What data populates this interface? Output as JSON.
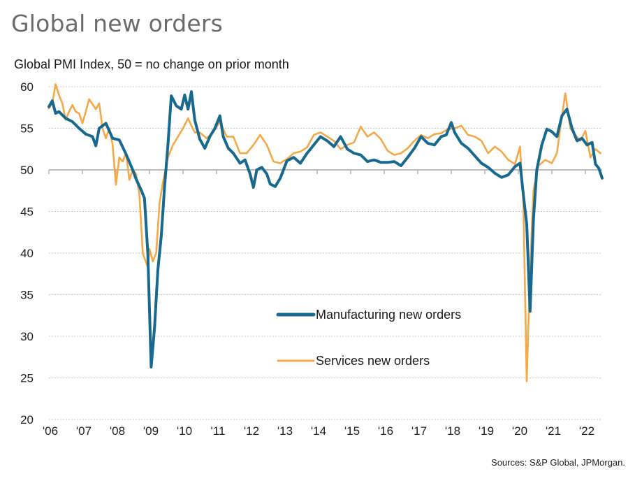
{
  "page": {
    "title": "Global new orders",
    "source": "Sources: S&P Global, JPMorgan."
  },
  "chart_data": {
    "type": "line",
    "title": "Global new orders",
    "subtitle": "Global PMI Index, 50 = no change on prior month",
    "xlabel": "",
    "ylabel": "Global PMI Index, 50 = no change on prior month",
    "ylim": [
      20,
      60
    ],
    "yticks": [
      20,
      25,
      30,
      35,
      40,
      45,
      50,
      55,
      60
    ],
    "xlim": [
      2006.0,
      2022.55
    ],
    "xticks": [
      2006,
      2007,
      2008,
      2009,
      2010,
      2011,
      2012,
      2013,
      2014,
      2015,
      2016,
      2017,
      2018,
      2019,
      2020,
      2021,
      2022
    ],
    "xtick_labels": [
      "'06",
      "'07",
      "'08",
      "'09",
      "'10",
      "'11",
      "'12",
      "'13",
      "'14",
      "'15",
      "'16",
      "'17",
      "'18",
      "'19",
      "'20",
      "'21",
      "'22"
    ],
    "reference_line": 50,
    "grid": "horizontal dotted",
    "legend": "center-bottom",
    "series": [
      {
        "name": "Manufacturing new orders",
        "color": "#17698f",
        "x": [
          2006.0,
          2006.1,
          2006.2,
          2006.3,
          2006.5,
          2006.7,
          2006.9,
          2007.1,
          2007.3,
          2007.4,
          2007.5,
          2007.7,
          2007.9,
          2008.1,
          2008.3,
          2008.5,
          2008.6,
          2008.75,
          2008.85,
          2008.95,
          2009.05,
          2009.15,
          2009.25,
          2009.35,
          2009.45,
          2009.55,
          2009.65,
          2009.8,
          2009.95,
          2010.05,
          2010.15,
          2010.25,
          2010.35,
          2010.5,
          2010.65,
          2010.8,
          2010.95,
          2011.1,
          2011.2,
          2011.35,
          2011.5,
          2011.7,
          2011.85,
          2012.0,
          2012.1,
          2012.2,
          2012.35,
          2012.5,
          2012.6,
          2012.75,
          2012.9,
          2013.1,
          2013.3,
          2013.5,
          2013.7,
          2013.9,
          2014.1,
          2014.3,
          2014.5,
          2014.7,
          2014.9,
          2015.1,
          2015.3,
          2015.5,
          2015.7,
          2015.9,
          2016.1,
          2016.3,
          2016.5,
          2016.7,
          2016.9,
          2017.1,
          2017.3,
          2017.5,
          2017.7,
          2017.85,
          2018.0,
          2018.1,
          2018.3,
          2018.5,
          2018.7,
          2018.9,
          2019.1,
          2019.3,
          2019.5,
          2019.7,
          2019.9,
          2020.05,
          2020.15,
          2020.25,
          2020.35,
          2020.45,
          2020.55,
          2020.7,
          2020.85,
          2021.0,
          2021.15,
          2021.3,
          2021.45,
          2021.6,
          2021.75,
          2021.9,
          2022.05,
          2022.2,
          2022.3,
          2022.4,
          2022.5
        ],
        "values": [
          57.6,
          58.3,
          56.8,
          57.0,
          56.2,
          55.8,
          55.0,
          54.3,
          54.0,
          52.9,
          55.0,
          55.6,
          53.8,
          53.6,
          51.9,
          50.0,
          48.9,
          47.6,
          46.6,
          40.0,
          26.3,
          31.0,
          38.0,
          42.0,
          48.0,
          53.0,
          58.9,
          57.7,
          57.3,
          59.0,
          57.3,
          59.4,
          56.0,
          53.7,
          52.6,
          54.0,
          55.0,
          56.5,
          54.0,
          52.6,
          52.0,
          50.8,
          51.2,
          49.5,
          47.9,
          50.0,
          50.3,
          49.5,
          48.3,
          48.0,
          49.0,
          51.1,
          51.5,
          50.8,
          52.0,
          53.0,
          54.0,
          53.5,
          52.8,
          54.0,
          52.5,
          52.0,
          51.8,
          51.0,
          51.2,
          50.9,
          50.9,
          51.0,
          50.5,
          51.5,
          52.6,
          54.0,
          53.2,
          53.0,
          54.0,
          54.2,
          55.7,
          54.5,
          53.2,
          52.6,
          51.7,
          50.8,
          50.3,
          49.6,
          49.1,
          49.4,
          50.4,
          50.8,
          47.0,
          43.5,
          33.0,
          44.0,
          50.0,
          53.0,
          54.9,
          54.6,
          54.0,
          56.5,
          57.3,
          55.0,
          53.5,
          53.8,
          53.0,
          53.3,
          50.7,
          50.2,
          49.0
        ]
      },
      {
        "name": "Services new orders",
        "color": "#f5a847",
        "x": [
          2006.0,
          2006.1,
          2006.2,
          2006.3,
          2006.4,
          2006.5,
          2006.6,
          2006.7,
          2006.8,
          2006.9,
          2007.0,
          2007.1,
          2007.2,
          2007.4,
          2007.5,
          2007.6,
          2007.7,
          2007.8,
          2007.9,
          2008.0,
          2008.1,
          2008.2,
          2008.3,
          2008.4,
          2008.5,
          2008.6,
          2008.7,
          2008.8,
          2008.95,
          2009.0,
          2009.1,
          2009.2,
          2009.3,
          2009.4,
          2009.55,
          2009.7,
          2009.85,
          2010.0,
          2010.15,
          2010.25,
          2010.35,
          2010.5,
          2010.7,
          2010.9,
          2011.1,
          2011.3,
          2011.5,
          2011.7,
          2011.9,
          2012.1,
          2012.3,
          2012.5,
          2012.7,
          2012.9,
          2013.1,
          2013.3,
          2013.5,
          2013.7,
          2013.9,
          2014.1,
          2014.3,
          2014.5,
          2014.7,
          2014.9,
          2015.1,
          2015.3,
          2015.5,
          2015.7,
          2015.9,
          2016.1,
          2016.3,
          2016.5,
          2016.7,
          2016.9,
          2017.1,
          2017.3,
          2017.5,
          2017.7,
          2017.9,
          2018.1,
          2018.3,
          2018.5,
          2018.7,
          2018.9,
          2019.1,
          2019.3,
          2019.5,
          2019.7,
          2019.9,
          2020.05,
          2020.15,
          2020.25,
          2020.35,
          2020.45,
          2020.6,
          2020.8,
          2021.0,
          2021.15,
          2021.25,
          2021.4,
          2021.55,
          2021.7,
          2021.85,
          2022.0,
          2022.15,
          2022.3,
          2022.45
        ],
        "values": [
          57.4,
          58.0,
          60.3,
          59.0,
          58.0,
          56.0,
          57.0,
          57.8,
          57.0,
          56.8,
          55.6,
          57.0,
          58.5,
          57.3,
          58.0,
          55.0,
          53.8,
          55.0,
          53.0,
          48.2,
          51.5,
          51.0,
          52.0,
          48.8,
          50.0,
          49.5,
          47.0,
          40.0,
          38.3,
          40.5,
          39.0,
          40.0,
          46.0,
          48.5,
          51.5,
          53.0,
          54.0,
          55.0,
          56.2,
          55.3,
          54.5,
          54.5,
          53.8,
          54.5,
          55.8,
          54.0,
          54.0,
          52.0,
          52.0,
          53.0,
          54.2,
          53.0,
          51.0,
          50.8,
          51.3,
          52.0,
          52.2,
          52.7,
          54.2,
          54.5,
          54.0,
          53.5,
          52.5,
          53.0,
          53.3,
          55.2,
          54.0,
          54.5,
          53.7,
          52.3,
          51.8,
          52.0,
          52.6,
          53.5,
          54.2,
          53.8,
          54.3,
          54.4,
          54.9,
          55.0,
          55.3,
          54.2,
          54.0,
          53.5,
          52.0,
          52.8,
          52.2,
          51.2,
          50.7,
          52.8,
          46.0,
          24.6,
          38.0,
          47.5,
          50.5,
          51.2,
          50.8,
          52.0,
          55.0,
          59.2,
          55.0,
          54.2,
          53.5,
          54.7,
          51.5,
          52.5,
          52.0
        ]
      }
    ]
  }
}
